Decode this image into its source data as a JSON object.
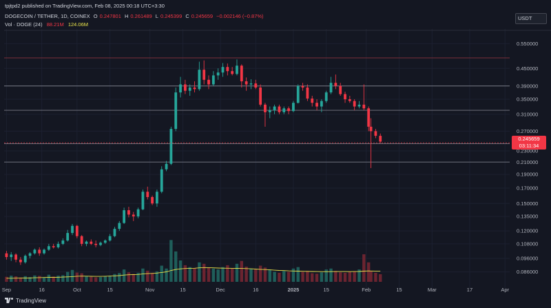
{
  "header": {
    "publish_text": "tpjtpd2 published on TradingView.com, Feb 08, 2025 00:18 UTC+3:30",
    "symbol": "DOGECOIN / TETHER, 1D, COINEX",
    "ohlc": {
      "open_label": "O",
      "open": "0.247801",
      "high_label": "H",
      "high": "0.261489",
      "low_label": "L",
      "low": "0.245399",
      "close_label": "C",
      "close": "0.245659",
      "change": "−0.002146 (−0.87%)"
    },
    "volume": {
      "name": "Vol · DOGE (24)",
      "value": "88.21M",
      "ma": "124.06M"
    }
  },
  "currency": "USDT",
  "price_badge": {
    "price": "0.245659",
    "countdown": "03:11:34"
  },
  "footer": {
    "brand": "TradingView"
  },
  "colors": {
    "up": "#26a69a",
    "down": "#f23645",
    "volume_ma": "#e8e24b",
    "background": "#141722"
  },
  "chart_data": {
    "type": "candlestick",
    "scale": "log",
    "ylim": [
      0.078,
      0.62
    ],
    "y_ticks": [
      "0.550000",
      "0.450000",
      "0.390000",
      "0.350000",
      "0.310000",
      "0.270000",
      "0.230000",
      "0.210000",
      "0.190000",
      "0.170000",
      "0.150000",
      "0.135000",
      "0.120000",
      "0.108000",
      "0.096000",
      "0.086000"
    ],
    "x_ticks": [
      {
        "label": "Sep",
        "date": "2024-09-01"
      },
      {
        "label": "16",
        "date": "2024-09-16"
      },
      {
        "label": "Oct",
        "date": "2024-10-01"
      },
      {
        "label": "15",
        "date": "2024-10-15"
      },
      {
        "label": "Nov",
        "date": "2024-11-01"
      },
      {
        "label": "15",
        "date": "2024-11-15"
      },
      {
        "label": "Dec",
        "date": "2024-12-01"
      },
      {
        "label": "16",
        "date": "2024-12-16"
      },
      {
        "label": "2025",
        "date": "2025-01-01"
      },
      {
        "label": "15",
        "date": "2025-01-15"
      },
      {
        "label": "Feb",
        "date": "2025-02-01"
      },
      {
        "label": "15",
        "date": "2025-02-15"
      },
      {
        "label": "Mar",
        "date": "2025-03-01"
      },
      {
        "label": "17",
        "date": "2025-03-17"
      },
      {
        "label": "Apr",
        "date": "2025-04-01"
      }
    ],
    "x_range": [
      "2024-08-31",
      "2025-04-03"
    ],
    "levels": [
      0.49,
      0.39,
      0.32,
      0.244,
      0.21
    ],
    "last_price": 0.245659,
    "candles": [
      {
        "d": "2024-09-01",
        "o": 0.1,
        "h": 0.102,
        "l": 0.095,
        "c": 0.097
      },
      {
        "d": "2024-09-03",
        "o": 0.097,
        "h": 0.101,
        "l": 0.094,
        "c": 0.099
      },
      {
        "d": "2024-09-05",
        "o": 0.099,
        "h": 0.1,
        "l": 0.093,
        "c": 0.095
      },
      {
        "d": "2024-09-07",
        "o": 0.095,
        "h": 0.097,
        "l": 0.091,
        "c": 0.093
      },
      {
        "d": "2024-09-09",
        "o": 0.093,
        "h": 0.099,
        "l": 0.092,
        "c": 0.098
      },
      {
        "d": "2024-09-11",
        "o": 0.098,
        "h": 0.101,
        "l": 0.096,
        "c": 0.1
      },
      {
        "d": "2024-09-13",
        "o": 0.1,
        "h": 0.104,
        "l": 0.099,
        "c": 0.103
      },
      {
        "d": "2024-09-15",
        "o": 0.103,
        "h": 0.105,
        "l": 0.098,
        "c": 0.1
      },
      {
        "d": "2024-09-17",
        "o": 0.1,
        "h": 0.104,
        "l": 0.099,
        "c": 0.103
      },
      {
        "d": "2024-09-19",
        "o": 0.103,
        "h": 0.108,
        "l": 0.102,
        "c": 0.106
      },
      {
        "d": "2024-09-21",
        "o": 0.106,
        "h": 0.108,
        "l": 0.104,
        "c": 0.105
      },
      {
        "d": "2024-09-23",
        "o": 0.105,
        "h": 0.11,
        "l": 0.104,
        "c": 0.108
      },
      {
        "d": "2024-09-25",
        "o": 0.108,
        "h": 0.113,
        "l": 0.107,
        "c": 0.111
      },
      {
        "d": "2024-09-27",
        "o": 0.111,
        "h": 0.121,
        "l": 0.11,
        "c": 0.118
      },
      {
        "d": "2024-09-29",
        "o": 0.118,
        "h": 0.127,
        "l": 0.116,
        "c": 0.125
      },
      {
        "d": "2024-10-01",
        "o": 0.125,
        "h": 0.126,
        "l": 0.113,
        "c": 0.115
      },
      {
        "d": "2024-10-03",
        "o": 0.115,
        "h": 0.116,
        "l": 0.106,
        "c": 0.108
      },
      {
        "d": "2024-10-05",
        "o": 0.108,
        "h": 0.111,
        "l": 0.106,
        "c": 0.11
      },
      {
        "d": "2024-10-07",
        "o": 0.11,
        "h": 0.112,
        "l": 0.107,
        "c": 0.108
      },
      {
        "d": "2024-10-09",
        "o": 0.108,
        "h": 0.111,
        "l": 0.105,
        "c": 0.107
      },
      {
        "d": "2024-10-11",
        "o": 0.107,
        "h": 0.11,
        "l": 0.106,
        "c": 0.109
      },
      {
        "d": "2024-10-13",
        "o": 0.109,
        "h": 0.112,
        "l": 0.108,
        "c": 0.111
      },
      {
        "d": "2024-10-15",
        "o": 0.111,
        "h": 0.117,
        "l": 0.11,
        "c": 0.115
      },
      {
        "d": "2024-10-17",
        "o": 0.115,
        "h": 0.124,
        "l": 0.114,
        "c": 0.122
      },
      {
        "d": "2024-10-19",
        "o": 0.122,
        "h": 0.13,
        "l": 0.12,
        "c": 0.128
      },
      {
        "d": "2024-10-21",
        "o": 0.128,
        "h": 0.145,
        "l": 0.127,
        "c": 0.142
      },
      {
        "d": "2024-10-23",
        "o": 0.142,
        "h": 0.146,
        "l": 0.134,
        "c": 0.137
      },
      {
        "d": "2024-10-25",
        "o": 0.137,
        "h": 0.14,
        "l": 0.13,
        "c": 0.135
      },
      {
        "d": "2024-10-27",
        "o": 0.135,
        "h": 0.145,
        "l": 0.133,
        "c": 0.143
      },
      {
        "d": "2024-10-29",
        "o": 0.143,
        "h": 0.168,
        "l": 0.142,
        "c": 0.165
      },
      {
        "d": "2024-10-31",
        "o": 0.165,
        "h": 0.172,
        "l": 0.155,
        "c": 0.158
      },
      {
        "d": "2024-11-02",
        "o": 0.158,
        "h": 0.16,
        "l": 0.148,
        "c": 0.15
      },
      {
        "d": "2024-11-04",
        "o": 0.15,
        "h": 0.168,
        "l": 0.146,
        "c": 0.165
      },
      {
        "d": "2024-11-06",
        "o": 0.165,
        "h": 0.203,
        "l": 0.163,
        "c": 0.198
      },
      {
        "d": "2024-11-08",
        "o": 0.198,
        "h": 0.212,
        "l": 0.195,
        "c": 0.207
      },
      {
        "d": "2024-11-10",
        "o": 0.207,
        "h": 0.28,
        "l": 0.205,
        "c": 0.275
      },
      {
        "d": "2024-11-12",
        "o": 0.275,
        "h": 0.385,
        "l": 0.27,
        "c": 0.37
      },
      {
        "d": "2024-11-14",
        "o": 0.37,
        "h": 0.42,
        "l": 0.355,
        "c": 0.395
      },
      {
        "d": "2024-11-16",
        "o": 0.395,
        "h": 0.41,
        "l": 0.365,
        "c": 0.375
      },
      {
        "d": "2024-11-18",
        "o": 0.375,
        "h": 0.395,
        "l": 0.36,
        "c": 0.385
      },
      {
        "d": "2024-11-20",
        "o": 0.385,
        "h": 0.405,
        "l": 0.37,
        "c": 0.38
      },
      {
        "d": "2024-11-22",
        "o": 0.38,
        "h": 0.475,
        "l": 0.375,
        "c": 0.445
      },
      {
        "d": "2024-11-24",
        "o": 0.445,
        "h": 0.48,
        "l": 0.395,
        "c": 0.41
      },
      {
        "d": "2024-11-26",
        "o": 0.41,
        "h": 0.425,
        "l": 0.38,
        "c": 0.395
      },
      {
        "d": "2024-11-28",
        "o": 0.395,
        "h": 0.44,
        "l": 0.39,
        "c": 0.425
      },
      {
        "d": "2024-11-30",
        "o": 0.425,
        "h": 0.45,
        "l": 0.41,
        "c": 0.435
      },
      {
        "d": "2024-12-02",
        "o": 0.435,
        "h": 0.47,
        "l": 0.42,
        "c": 0.455
      },
      {
        "d": "2024-12-04",
        "o": 0.455,
        "h": 0.468,
        "l": 0.425,
        "c": 0.44
      },
      {
        "d": "2024-12-06",
        "o": 0.44,
        "h": 0.455,
        "l": 0.425,
        "c": 0.43
      },
      {
        "d": "2024-12-08",
        "o": 0.43,
        "h": 0.484,
        "l": 0.425,
        "c": 0.46
      },
      {
        "d": "2024-12-10",
        "o": 0.46,
        "h": 0.465,
        "l": 0.385,
        "c": 0.405
      },
      {
        "d": "2024-12-12",
        "o": 0.405,
        "h": 0.418,
        "l": 0.375,
        "c": 0.395
      },
      {
        "d": "2024-12-14",
        "o": 0.395,
        "h": 0.412,
        "l": 0.38,
        "c": 0.398
      },
      {
        "d": "2024-12-16",
        "o": 0.398,
        "h": 0.41,
        "l": 0.38,
        "c": 0.385
      },
      {
        "d": "2024-12-18",
        "o": 0.385,
        "h": 0.395,
        "l": 0.33,
        "c": 0.335
      },
      {
        "d": "2024-12-20",
        "o": 0.335,
        "h": 0.34,
        "l": 0.28,
        "c": 0.315
      },
      {
        "d": "2024-12-22",
        "o": 0.315,
        "h": 0.33,
        "l": 0.3,
        "c": 0.32
      },
      {
        "d": "2024-12-24",
        "o": 0.32,
        "h": 0.335,
        "l": 0.31,
        "c": 0.33
      },
      {
        "d": "2024-12-26",
        "o": 0.33,
        "h": 0.335,
        "l": 0.31,
        "c": 0.315
      },
      {
        "d": "2024-12-28",
        "o": 0.315,
        "h": 0.33,
        "l": 0.31,
        "c": 0.325
      },
      {
        "d": "2024-12-30",
        "o": 0.325,
        "h": 0.33,
        "l": 0.31,
        "c": 0.318
      },
      {
        "d": "2025-01-01",
        "o": 0.318,
        "h": 0.345,
        "l": 0.315,
        "c": 0.34
      },
      {
        "d": "2025-01-03",
        "o": 0.34,
        "h": 0.395,
        "l": 0.338,
        "c": 0.39
      },
      {
        "d": "2025-01-05",
        "o": 0.39,
        "h": 0.4,
        "l": 0.375,
        "c": 0.385
      },
      {
        "d": "2025-01-07",
        "o": 0.385,
        "h": 0.395,
        "l": 0.345,
        "c": 0.352
      },
      {
        "d": "2025-01-09",
        "o": 0.352,
        "h": 0.36,
        "l": 0.33,
        "c": 0.34
      },
      {
        "d": "2025-01-11",
        "o": 0.34,
        "h": 0.35,
        "l": 0.32,
        "c": 0.33
      },
      {
        "d": "2025-01-13",
        "o": 0.33,
        "h": 0.35,
        "l": 0.315,
        "c": 0.345
      },
      {
        "d": "2025-01-15",
        "o": 0.345,
        "h": 0.375,
        "l": 0.34,
        "c": 0.37
      },
      {
        "d": "2025-01-17",
        "o": 0.37,
        "h": 0.42,
        "l": 0.365,
        "c": 0.4
      },
      {
        "d": "2025-01-19",
        "o": 0.4,
        "h": 0.428,
        "l": 0.38,
        "c": 0.39
      },
      {
        "d": "2025-01-21",
        "o": 0.39,
        "h": 0.4,
        "l": 0.36,
        "c": 0.365
      },
      {
        "d": "2025-01-23",
        "o": 0.365,
        "h": 0.372,
        "l": 0.34,
        "c": 0.35
      },
      {
        "d": "2025-01-25",
        "o": 0.35,
        "h": 0.36,
        "l": 0.34,
        "c": 0.345
      },
      {
        "d": "2025-01-27",
        "o": 0.345,
        "h": 0.35,
        "l": 0.32,
        "c": 0.33
      },
      {
        "d": "2025-01-29",
        "o": 0.33,
        "h": 0.345,
        "l": 0.325,
        "c": 0.335
      },
      {
        "d": "2025-01-31",
        "o": 0.335,
        "h": 0.395,
        "l": 0.32,
        "c": 0.325
      },
      {
        "d": "2025-02-02",
        "o": 0.325,
        "h": 0.33,
        "l": 0.27,
        "c": 0.28
      },
      {
        "d": "2025-02-03",
        "o": 0.28,
        "h": 0.3,
        "l": 0.2,
        "c": 0.27
      },
      {
        "d": "2025-02-05",
        "o": 0.27,
        "h": 0.275,
        "l": 0.255,
        "c": 0.26
      },
      {
        "d": "2025-02-07",
        "o": 0.26,
        "h": 0.265,
        "l": 0.245,
        "c": 0.248
      }
    ],
    "volume_unit": "M DOGE",
    "volume_ylim": [
      0,
      1800
    ],
    "volume": [
      210,
      260,
      230,
      180,
      240,
      200,
      270,
      250,
      190,
      300,
      220,
      260,
      280,
      420,
      500,
      390,
      360,
      230,
      210,
      190,
      200,
      230,
      260,
      330,
      370,
      520,
      400,
      330,
      380,
      560,
      470,
      380,
      440,
      680,
      560,
      1760,
      1280,
      900,
      700,
      620,
      580,
      820,
      760,
      600,
      560,
      520,
      620,
      700,
      580,
      760,
      880,
      640,
      560,
      520,
      680,
      600,
      500,
      420,
      380,
      460,
      420,
      560,
      620,
      420,
      460,
      360,
      340,
      400,
      520,
      560,
      460,
      400,
      380,
      420,
      440,
      520,
      1160,
      820,
      460,
      380,
      320
    ],
    "volume_ma": [
      150,
      152,
      155,
      158,
      160,
      162,
      170,
      178,
      182,
      188,
      190,
      192,
      200,
      210,
      222,
      235,
      240,
      238,
      232,
      228,
      230,
      235,
      240,
      250,
      262,
      285,
      300,
      305,
      312,
      330,
      345,
      355,
      368,
      395,
      420,
      480,
      520,
      545,
      560,
      568,
      572,
      590,
      600,
      598,
      590,
      580,
      576,
      572,
      568,
      566,
      564,
      558,
      548,
      536,
      525,
      516,
      505,
      492,
      480,
      472,
      462,
      455,
      450,
      445,
      440,
      436,
      432,
      430,
      428,
      430,
      432,
      433,
      432,
      430,
      432,
      435,
      450,
      458,
      455,
      452,
      448
    ]
  }
}
